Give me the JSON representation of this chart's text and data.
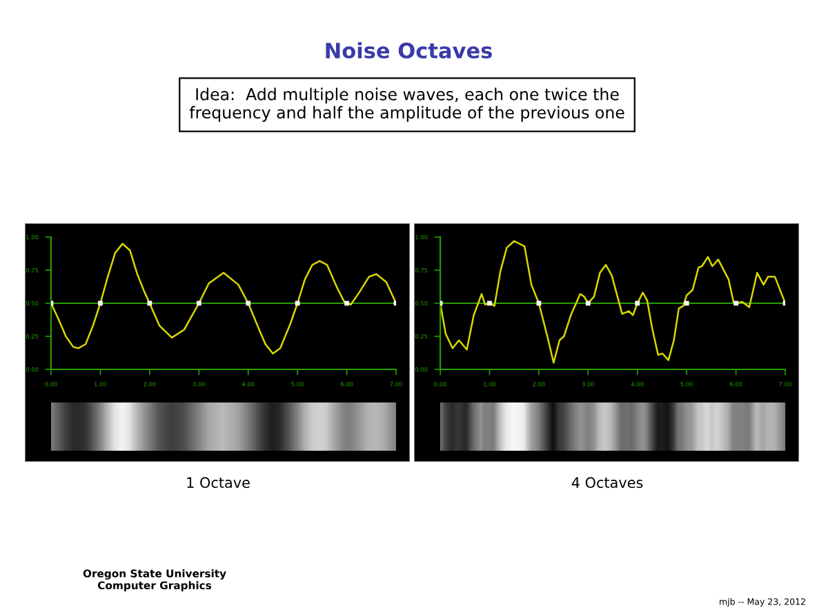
{
  "chart_data": [
    {
      "type": "other",
      "title": "Noise Octaves",
      "annotations": [
        "Idea:  Add multiple noise waves, each one twice the\nfrequency and half the amplitude of the previous one",
        "Oregon State University\nComputer Graphics",
        "mjb -- May 23, 2012"
      ]
    },
    {
      "type": "line",
      "annotations": [
        "1 Octave"
      ],
      "xlim": [
        0,
        7
      ],
      "ylim": [
        0,
        1
      ],
      "xticks": [
        {
          "value": 0,
          "label": "0.00"
        },
        {
          "value": 1,
          "label": "1.00"
        },
        {
          "value": 2,
          "label": "2.00"
        },
        {
          "value": 3,
          "label": "3.00"
        },
        {
          "value": 4,
          "label": "4.00"
        },
        {
          "value": 5,
          "label": "5.00"
        },
        {
          "value": 6,
          "label": "6.00"
        },
        {
          "value": 7,
          "label": "7.00"
        }
      ],
      "yticks": [
        {
          "value": 0,
          "label": "0.00"
        },
        {
          "value": 0.25,
          "label": "0.25"
        },
        {
          "value": 0.5,
          "label": "0.50"
        },
        {
          "value": 0.75,
          "label": "0.75"
        },
        {
          "value": 1,
          "label": "1.00"
        }
      ],
      "ref_lines": [
        {
          "axis": "y",
          "value": 0.5,
          "color": "#2e9e00"
        }
      ],
      "series": [
        {
          "type": "line",
          "color": "#d8d800",
          "x": [
            0,
            0.15,
            0.3,
            0.45,
            0.55,
            0.7,
            0.85,
            1.0,
            1.15,
            1.3,
            1.45,
            1.6,
            1.75,
            1.9,
            2.0,
            2.2,
            2.45,
            2.7,
            2.85,
            3.0,
            3.2,
            3.5,
            3.8,
            4.0,
            4.2,
            4.35,
            4.5,
            4.65,
            4.85,
            5.0,
            5.15,
            5.3,
            5.45,
            5.6,
            5.8,
            5.95,
            6.08,
            6.25,
            6.45,
            6.6,
            6.8,
            7.0
          ],
          "values": [
            0.5,
            0.38,
            0.25,
            0.17,
            0.16,
            0.19,
            0.33,
            0.5,
            0.7,
            0.88,
            0.95,
            0.9,
            0.72,
            0.58,
            0.5,
            0.33,
            0.24,
            0.3,
            0.4,
            0.5,
            0.65,
            0.73,
            0.64,
            0.5,
            0.32,
            0.19,
            0.12,
            0.16,
            0.34,
            0.5,
            0.68,
            0.79,
            0.82,
            0.79,
            0.62,
            0.51,
            0.49,
            0.58,
            0.7,
            0.72,
            0.66,
            0.5
          ]
        },
        {
          "type": "scatter",
          "marker": "square",
          "color": "#ffffff",
          "x": [
            0,
            1,
            2,
            3,
            4,
            5,
            6,
            7
          ],
          "values": [
            0.5,
            0.5,
            0.5,
            0.5,
            0.5,
            0.5,
            0.5,
            0.5
          ]
        }
      ]
    },
    {
      "type": "line",
      "annotations": [
        "4 Octaves"
      ],
      "xlim": [
        0,
        7
      ],
      "ylim": [
        0,
        1
      ],
      "xticks": [
        {
          "value": 0,
          "label": "0.00"
        },
        {
          "value": 1,
          "label": "1.00"
        },
        {
          "value": 2,
          "label": "2.00"
        },
        {
          "value": 3,
          "label": "3.00"
        },
        {
          "value": 4,
          "label": "4.00"
        },
        {
          "value": 5,
          "label": "5.00"
        },
        {
          "value": 6,
          "label": "6.00"
        },
        {
          "value": 7,
          "label": "7.00"
        }
      ],
      "yticks": [
        {
          "value": 0,
          "label": "0.00"
        },
        {
          "value": 0.25,
          "label": "0.25"
        },
        {
          "value": 0.5,
          "label": "0.50"
        },
        {
          "value": 0.75,
          "label": "0.75"
        },
        {
          "value": 1,
          "label": "1.00"
        }
      ],
      "ref_lines": [
        {
          "axis": "y",
          "value": 0.5,
          "color": "#2e9e00"
        }
      ],
      "series": [
        {
          "type": "line",
          "color": "#d8d800",
          "x": [
            0,
            0.11,
            0.25,
            0.38,
            0.54,
            0.68,
            0.84,
            0.91,
            1.0,
            1.1,
            1.22,
            1.35,
            1.5,
            1.71,
            1.85,
            2.0,
            2.18,
            2.3,
            2.42,
            2.51,
            2.65,
            2.84,
            2.92,
            3.0,
            3.12,
            3.24,
            3.36,
            3.48,
            3.69,
            3.83,
            3.91,
            4.0,
            4.11,
            4.2,
            4.3,
            4.42,
            4.51,
            4.63,
            4.74,
            4.84,
            4.93,
            5.0,
            5.12,
            5.24,
            5.31,
            5.43,
            5.52,
            5.64,
            5.85,
            5.95,
            6.0,
            6.13,
            6.27,
            6.43,
            6.56,
            6.65,
            6.79,
            7.0
          ],
          "values": [
            0.5,
            0.27,
            0.16,
            0.22,
            0.15,
            0.41,
            0.57,
            0.49,
            0.5,
            0.48,
            0.74,
            0.92,
            0.97,
            0.93,
            0.64,
            0.5,
            0.24,
            0.05,
            0.22,
            0.25,
            0.41,
            0.57,
            0.55,
            0.5,
            0.55,
            0.73,
            0.79,
            0.71,
            0.42,
            0.44,
            0.41,
            0.5,
            0.58,
            0.52,
            0.31,
            0.11,
            0.12,
            0.07,
            0.22,
            0.46,
            0.48,
            0.56,
            0.6,
            0.77,
            0.78,
            0.85,
            0.78,
            0.83,
            0.68,
            0.51,
            0.5,
            0.51,
            0.47,
            0.73,
            0.64,
            0.7,
            0.7,
            0.5
          ]
        },
        {
          "type": "scatter",
          "marker": "square",
          "color": "#ffffff",
          "x": [
            0,
            1,
            2,
            3,
            4,
            5,
            6,
            7
          ],
          "values": [
            0.5,
            0.5,
            0.5,
            0.5,
            0.5,
            0.5,
            0.5,
            0.5
          ]
        }
      ]
    }
  ]
}
